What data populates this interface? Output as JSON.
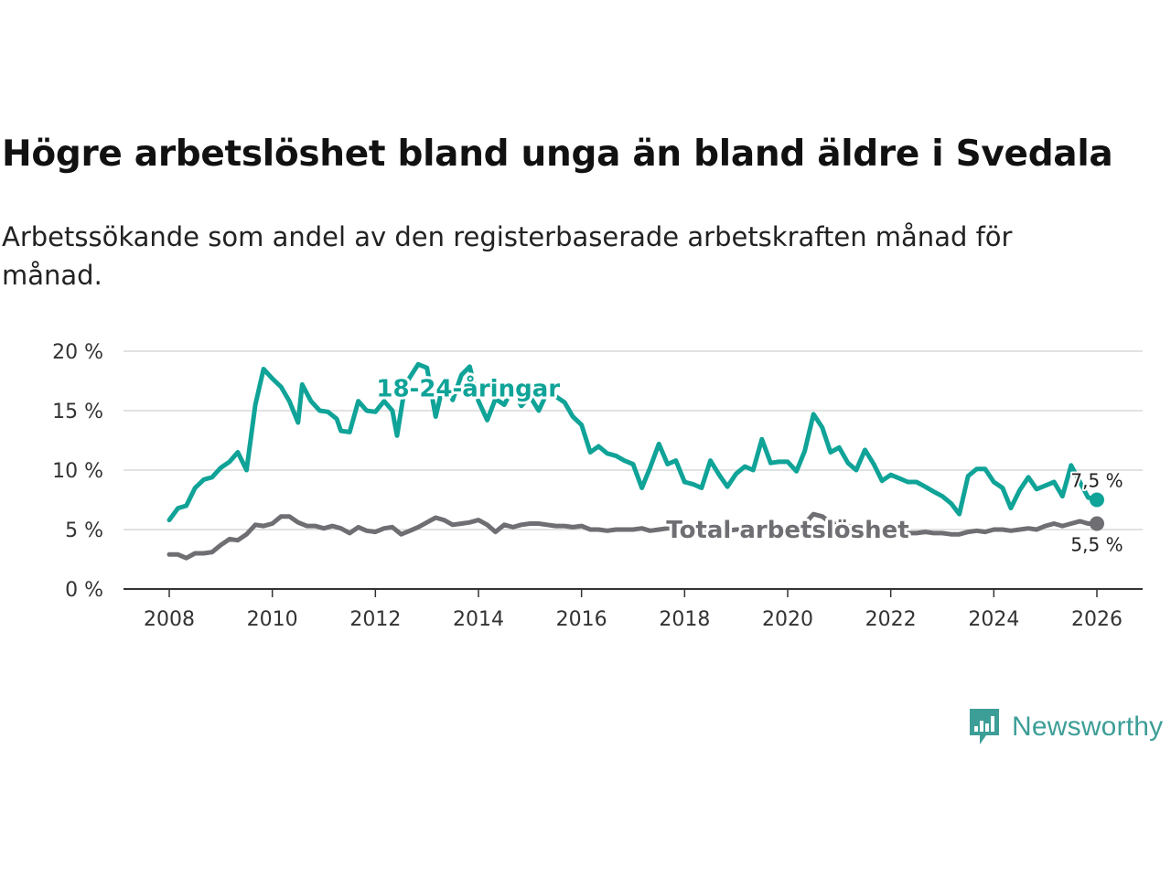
{
  "title": "Högre arbetslöshet bland unga än bland äldre i Svedala",
  "subtitle": "Arbetssökande som andel av den registerbaserade arbetskraften månad för månad.",
  "brand": {
    "name": "Newsworthy",
    "color": "#3d9e97",
    "icon": "chart-speech-bubble-icon"
  },
  "chart_data": {
    "type": "line",
    "title": "Högre arbetslöshet bland unga än bland äldre i Svedala",
    "xlabel": "",
    "ylabel": "",
    "xlim": [
      2007.5,
      2026.8
    ],
    "ylim": [
      0,
      20
    ],
    "grid": true,
    "x_ticks": [
      2008,
      2010,
      2012,
      2014,
      2016,
      2018,
      2020,
      2022,
      2024,
      2026
    ],
    "x_tick_labels": [
      "2008",
      "2010",
      "2012",
      "2014",
      "2016",
      "2018",
      "2020",
      "2022",
      "2024",
      "2026"
    ],
    "y_ticks": [
      0,
      5,
      10,
      15,
      20
    ],
    "y_tick_labels": [
      "0 %",
      "5 %",
      "10 %",
      "15 %",
      "20 %"
    ],
    "series": [
      {
        "name": "18-24-åringar",
        "color": "#10a398",
        "end_label": "7,5 %",
        "points": [
          [
            2008.0,
            5.8
          ],
          [
            2008.17,
            6.8
          ],
          [
            2008.33,
            7.0
          ],
          [
            2008.5,
            8.5
          ],
          [
            2008.67,
            9.2
          ],
          [
            2008.83,
            9.4
          ],
          [
            2009.0,
            10.2
          ],
          [
            2009.17,
            10.7
          ],
          [
            2009.33,
            11.5
          ],
          [
            2009.5,
            10.0
          ],
          [
            2009.67,
            15.5
          ],
          [
            2009.83,
            18.5
          ],
          [
            2010.0,
            17.7
          ],
          [
            2010.17,
            17.0
          ],
          [
            2010.33,
            15.8
          ],
          [
            2010.5,
            14.0
          ],
          [
            2010.58,
            17.2
          ],
          [
            2010.75,
            15.8
          ],
          [
            2010.92,
            15.0
          ],
          [
            2011.08,
            14.9
          ],
          [
            2011.25,
            14.3
          ],
          [
            2011.33,
            13.3
          ],
          [
            2011.5,
            13.2
          ],
          [
            2011.67,
            15.8
          ],
          [
            2011.83,
            15.0
          ],
          [
            2012.0,
            14.9
          ],
          [
            2012.17,
            15.8
          ],
          [
            2012.33,
            15.0
          ],
          [
            2012.42,
            12.9
          ],
          [
            2012.58,
            17.2
          ],
          [
            2012.83,
            18.9
          ],
          [
            2013.0,
            18.6
          ],
          [
            2013.17,
            14.5
          ],
          [
            2013.33,
            17.5
          ],
          [
            2013.5,
            15.9
          ],
          [
            2013.67,
            18.0
          ],
          [
            2013.83,
            18.7
          ],
          [
            2014.0,
            15.8
          ],
          [
            2014.17,
            14.2
          ],
          [
            2014.33,
            16.0
          ],
          [
            2014.5,
            15.5
          ],
          [
            2014.67,
            16.9
          ],
          [
            2014.83,
            15.4
          ],
          [
            2015.0,
            16.2
          ],
          [
            2015.17,
            15.0
          ],
          [
            2015.33,
            16.5
          ],
          [
            2015.5,
            16.2
          ],
          [
            2015.67,
            15.7
          ],
          [
            2015.83,
            14.5
          ],
          [
            2016.0,
            13.8
          ],
          [
            2016.17,
            11.5
          ],
          [
            2016.33,
            12.0
          ],
          [
            2016.5,
            11.4
          ],
          [
            2016.67,
            11.2
          ],
          [
            2016.83,
            10.8
          ],
          [
            2017.0,
            10.5
          ],
          [
            2017.17,
            8.5
          ],
          [
            2017.33,
            10.2
          ],
          [
            2017.5,
            12.2
          ],
          [
            2017.67,
            10.5
          ],
          [
            2017.83,
            10.8
          ],
          [
            2018.0,
            9.0
          ],
          [
            2018.17,
            8.8
          ],
          [
            2018.33,
            8.5
          ],
          [
            2018.5,
            10.8
          ],
          [
            2018.67,
            9.6
          ],
          [
            2018.83,
            8.6
          ],
          [
            2019.0,
            9.7
          ],
          [
            2019.17,
            10.3
          ],
          [
            2019.33,
            10.0
          ],
          [
            2019.5,
            12.6
          ],
          [
            2019.67,
            10.6
          ],
          [
            2019.83,
            10.7
          ],
          [
            2020.0,
            10.7
          ],
          [
            2020.17,
            9.9
          ],
          [
            2020.33,
            11.6
          ],
          [
            2020.5,
            14.7
          ],
          [
            2020.67,
            13.6
          ],
          [
            2020.83,
            11.5
          ],
          [
            2021.0,
            11.9
          ],
          [
            2021.17,
            10.6
          ],
          [
            2021.33,
            10.0
          ],
          [
            2021.5,
            11.7
          ],
          [
            2021.67,
            10.5
          ],
          [
            2021.83,
            9.1
          ],
          [
            2022.0,
            9.6
          ],
          [
            2022.17,
            9.3
          ],
          [
            2022.33,
            9.0
          ],
          [
            2022.5,
            9.0
          ],
          [
            2022.67,
            8.6
          ],
          [
            2022.83,
            8.2
          ],
          [
            2023.0,
            7.8
          ],
          [
            2023.17,
            7.2
          ],
          [
            2023.33,
            6.3
          ],
          [
            2023.5,
            9.5
          ],
          [
            2023.67,
            10.1
          ],
          [
            2023.83,
            10.1
          ],
          [
            2024.0,
            9.0
          ],
          [
            2024.17,
            8.5
          ],
          [
            2024.33,
            6.8
          ],
          [
            2024.5,
            8.3
          ],
          [
            2024.67,
            9.4
          ],
          [
            2024.83,
            8.4
          ],
          [
            2025.0,
            8.7
          ],
          [
            2025.17,
            9.0
          ],
          [
            2025.33,
            7.8
          ],
          [
            2025.5,
            10.4
          ],
          [
            2025.67,
            9.0
          ],
          [
            2025.83,
            7.7
          ],
          [
            2026.0,
            7.5
          ]
        ]
      },
      {
        "name": "Total arbetslöshet",
        "color": "#6e6e73",
        "end_label": "5,5 %",
        "points": [
          [
            2008.0,
            2.9
          ],
          [
            2008.17,
            2.9
          ],
          [
            2008.33,
            2.6
          ],
          [
            2008.5,
            3.0
          ],
          [
            2008.67,
            3.0
          ],
          [
            2008.83,
            3.1
          ],
          [
            2009.0,
            3.7
          ],
          [
            2009.17,
            4.2
          ],
          [
            2009.33,
            4.1
          ],
          [
            2009.5,
            4.6
          ],
          [
            2009.67,
            5.4
          ],
          [
            2009.83,
            5.3
          ],
          [
            2010.0,
            5.5
          ],
          [
            2010.17,
            6.1
          ],
          [
            2010.33,
            6.1
          ],
          [
            2010.5,
            5.6
          ],
          [
            2010.67,
            5.3
          ],
          [
            2010.83,
            5.3
          ],
          [
            2011.0,
            5.1
          ],
          [
            2011.17,
            5.3
          ],
          [
            2011.33,
            5.1
          ],
          [
            2011.5,
            4.7
          ],
          [
            2011.67,
            5.2
          ],
          [
            2011.83,
            4.9
          ],
          [
            2012.0,
            4.8
          ],
          [
            2012.17,
            5.1
          ],
          [
            2012.33,
            5.2
          ],
          [
            2012.5,
            4.6
          ],
          [
            2012.67,
            4.9
          ],
          [
            2012.83,
            5.2
          ],
          [
            2013.0,
            5.6
          ],
          [
            2013.17,
            6.0
          ],
          [
            2013.33,
            5.8
          ],
          [
            2013.5,
            5.4
          ],
          [
            2013.67,
            5.5
          ],
          [
            2013.83,
            5.6
          ],
          [
            2014.0,
            5.8
          ],
          [
            2014.17,
            5.4
          ],
          [
            2014.33,
            4.8
          ],
          [
            2014.5,
            5.4
          ],
          [
            2014.67,
            5.2
          ],
          [
            2014.83,
            5.4
          ],
          [
            2015.0,
            5.5
          ],
          [
            2015.17,
            5.5
          ],
          [
            2015.33,
            5.4
          ],
          [
            2015.5,
            5.3
          ],
          [
            2015.67,
            5.3
          ],
          [
            2015.83,
            5.2
          ],
          [
            2016.0,
            5.3
          ],
          [
            2016.17,
            5.0
          ],
          [
            2016.33,
            5.0
          ],
          [
            2016.5,
            4.9
          ],
          [
            2016.67,
            5.0
          ],
          [
            2016.83,
            5.0
          ],
          [
            2017.0,
            5.0
          ],
          [
            2017.17,
            5.1
          ],
          [
            2017.33,
            4.9
          ],
          [
            2017.5,
            5.0
          ],
          [
            2017.67,
            5.1
          ],
          [
            2017.83,
            5.1
          ],
          [
            2018.0,
            5.0
          ],
          [
            2018.17,
            4.9
          ],
          [
            2018.33,
            5.0
          ],
          [
            2018.5,
            5.0
          ],
          [
            2018.67,
            4.9
          ],
          [
            2018.83,
            4.9
          ],
          [
            2019.0,
            5.0
          ],
          [
            2019.17,
            5.0
          ],
          [
            2019.33,
            5.0
          ],
          [
            2019.5,
            5.1
          ],
          [
            2019.67,
            5.0
          ],
          [
            2019.83,
            5.0
          ],
          [
            2020.0,
            5.1
          ],
          [
            2020.17,
            5.2
          ],
          [
            2020.33,
            5.5
          ],
          [
            2020.5,
            6.3
          ],
          [
            2020.67,
            6.1
          ],
          [
            2020.83,
            5.6
          ],
          [
            2021.0,
            5.4
          ],
          [
            2021.17,
            5.3
          ],
          [
            2021.33,
            5.1
          ],
          [
            2021.5,
            5.0
          ],
          [
            2021.67,
            5.0
          ],
          [
            2021.83,
            4.9
          ],
          [
            2022.0,
            4.8
          ],
          [
            2022.17,
            4.8
          ],
          [
            2022.33,
            4.7
          ],
          [
            2022.5,
            4.7
          ],
          [
            2022.67,
            4.8
          ],
          [
            2022.83,
            4.7
          ],
          [
            2023.0,
            4.7
          ],
          [
            2023.17,
            4.6
          ],
          [
            2023.33,
            4.6
          ],
          [
            2023.5,
            4.8
          ],
          [
            2023.67,
            4.9
          ],
          [
            2023.83,
            4.8
          ],
          [
            2024.0,
            5.0
          ],
          [
            2024.17,
            5.0
          ],
          [
            2024.33,
            4.9
          ],
          [
            2024.5,
            5.0
          ],
          [
            2024.67,
            5.1
          ],
          [
            2024.83,
            5.0
          ],
          [
            2025.0,
            5.3
          ],
          [
            2025.17,
            5.5
          ],
          [
            2025.33,
            5.3
          ],
          [
            2025.5,
            5.5
          ],
          [
            2025.67,
            5.7
          ],
          [
            2025.83,
            5.5
          ],
          [
            2026.0,
            5.5
          ]
        ]
      }
    ]
  }
}
